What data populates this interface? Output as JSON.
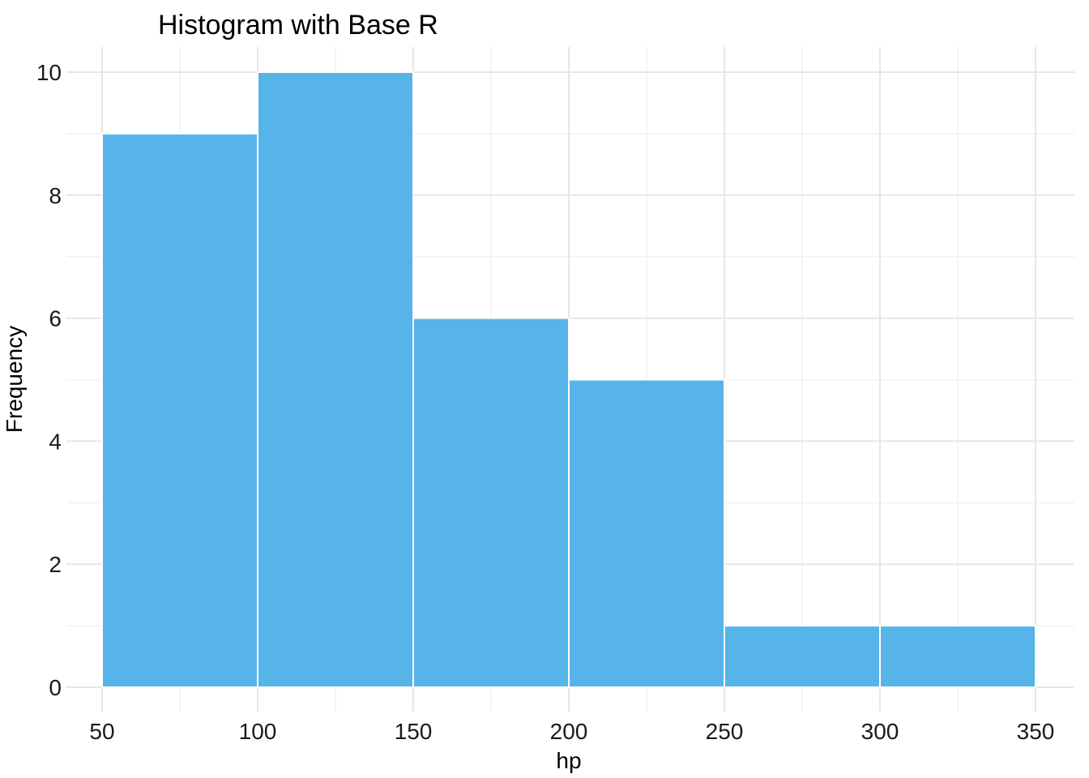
{
  "chart_data": {
    "type": "bar",
    "title": "Histogram with Base R",
    "xlabel": "hp",
    "ylabel": "Frequency",
    "bins": [
      {
        "start": 50,
        "end": 100,
        "count": 9
      },
      {
        "start": 100,
        "end": 150,
        "count": 10
      },
      {
        "start": 150,
        "end": 200,
        "count": 6
      },
      {
        "start": 200,
        "end": 250,
        "count": 5
      },
      {
        "start": 250,
        "end": 300,
        "count": 1
      },
      {
        "start": 300,
        "end": 350,
        "count": 1
      }
    ],
    "xlim": [
      50,
      350
    ],
    "ylim": [
      0,
      10
    ],
    "xticks": [
      50,
      100,
      150,
      200,
      250,
      300,
      350
    ],
    "yticks": [
      0,
      2,
      4,
      6,
      8,
      10
    ],
    "xtick_labels": [
      "50",
      "100",
      "150",
      "200",
      "250",
      "300",
      "350"
    ],
    "ytick_labels": [
      "0",
      "2",
      "4",
      "6",
      "8",
      "10"
    ],
    "grid": true,
    "bar_color": "#56B4E9"
  }
}
